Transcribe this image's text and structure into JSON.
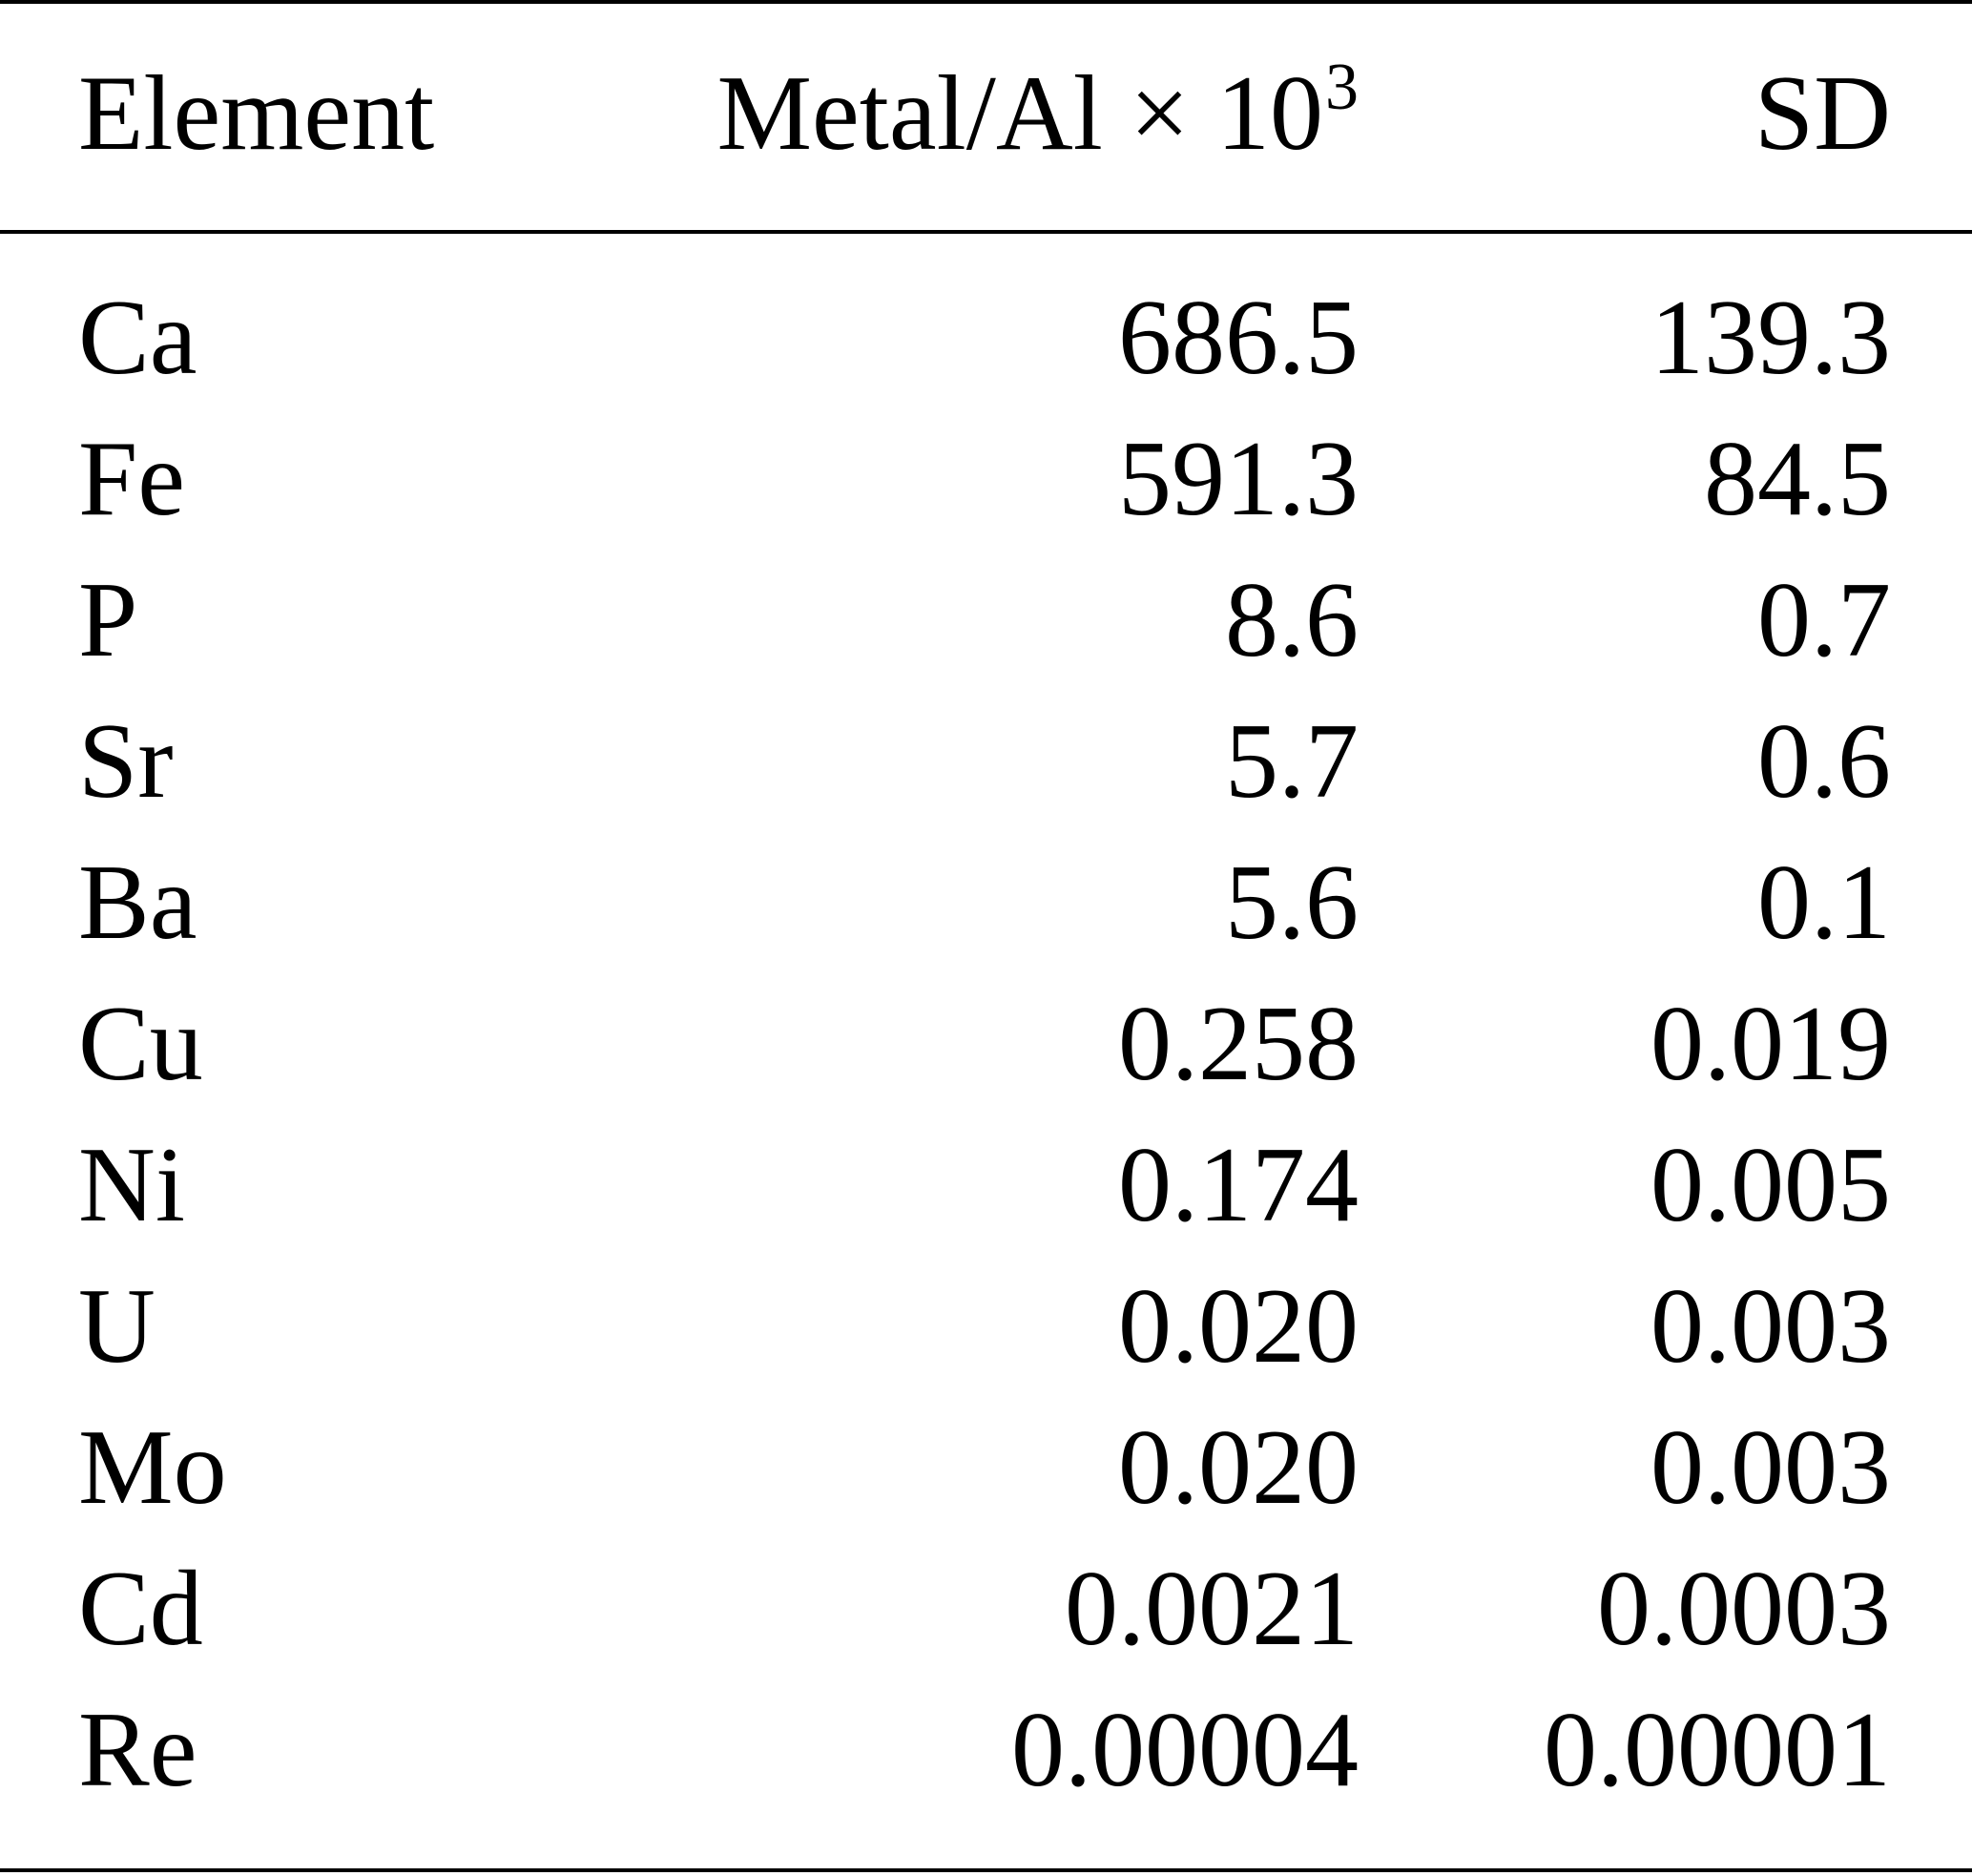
{
  "table": {
    "header": {
      "element": "Element",
      "ratio_base": "Metal/Al × 10",
      "ratio_exp": "3",
      "sd": "SD"
    },
    "rows": [
      {
        "element": "Ca",
        "ratio": "686.5",
        "sd": "139.3"
      },
      {
        "element": "Fe",
        "ratio": "591.3",
        "sd": "84.5"
      },
      {
        "element": "P",
        "ratio": "8.6",
        "sd": "0.7"
      },
      {
        "element": "Sr",
        "ratio": "5.7",
        "sd": "0.6"
      },
      {
        "element": "Ba",
        "ratio": "5.6",
        "sd": "0.1"
      },
      {
        "element": "Cu",
        "ratio": "0.258",
        "sd": "0.019"
      },
      {
        "element": "Ni",
        "ratio": "0.174",
        "sd": "0.005"
      },
      {
        "element": "U",
        "ratio": "0.020",
        "sd": "0.003"
      },
      {
        "element": "Mo",
        "ratio": "0.020",
        "sd": "0.003"
      },
      {
        "element": "Cd",
        "ratio": "0.0021",
        "sd": "0.0003"
      },
      {
        "element": "Re",
        "ratio": "0.00004",
        "sd": "0.00001"
      }
    ]
  }
}
